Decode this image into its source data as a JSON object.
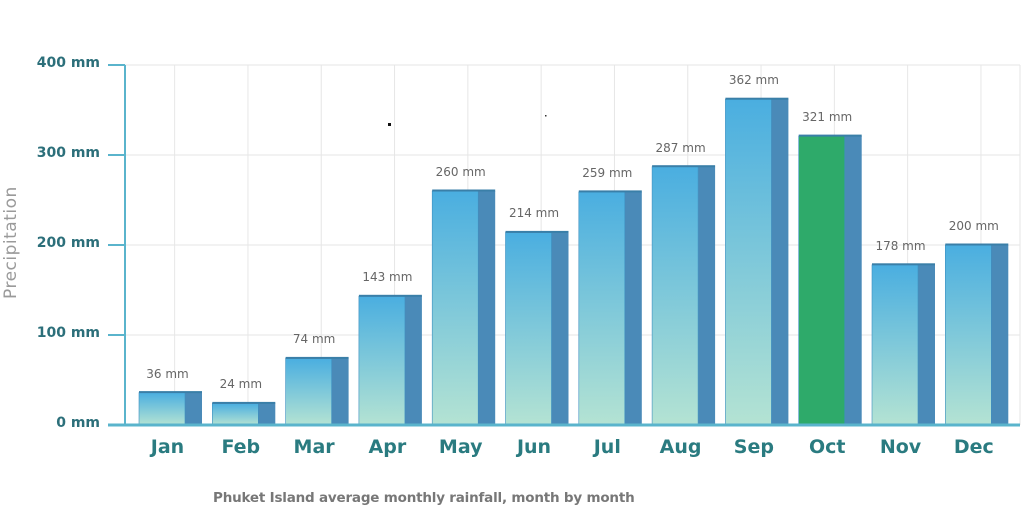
{
  "chart_data": {
    "type": "bar",
    "title": "",
    "caption": "Phuket Island average monthly rainfall, month by month",
    "xlabel": "",
    "ylabel": "Precipitation",
    "ylim": [
      0,
      400
    ],
    "yticks": [
      "0 mm",
      "100 mm",
      "200 mm",
      "300 mm",
      "400 mm"
    ],
    "ytick_values": [
      0,
      100,
      200,
      300,
      400
    ],
    "grid": true,
    "legend": null,
    "categories": [
      "Jan",
      "Feb",
      "Mar",
      "Apr",
      "May",
      "Jun",
      "Jul",
      "Aug",
      "Sep",
      "Oct",
      "Nov",
      "Dec"
    ],
    "values": [
      36,
      24,
      74,
      143,
      260,
      214,
      259,
      287,
      362,
      321,
      178,
      200
    ],
    "value_labels": [
      "36 mm",
      "24 mm",
      "74 mm",
      "143 mm",
      "260 mm",
      "214 mm",
      "259 mm",
      "287 mm",
      "362 mm",
      "321 mm",
      "178 mm",
      "200 mm"
    ],
    "highlight_index": 9,
    "colors": {
      "bar_top": "#4aaee0",
      "bar_bottom": "#b4e3d3",
      "bar_side": "#4a8ab8",
      "highlight": "#2eaa6a",
      "axis": "#5ab4cc",
      "tick_text": "#2c6f7a",
      "month_text": "#2a7b80",
      "grid": "#e6e6e6"
    }
  }
}
